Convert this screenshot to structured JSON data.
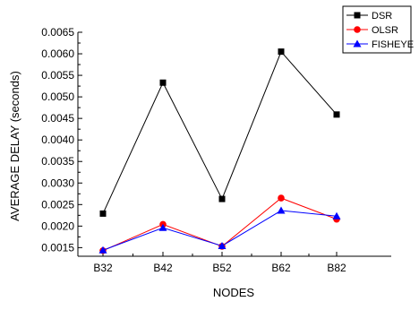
{
  "chart_data": {
    "type": "line",
    "title": "",
    "xlabel": "NODES",
    "ylabel": "AVERAGE DELAY (seconds)",
    "categories": [
      "B32",
      "B42",
      "B52",
      "B62",
      "B82"
    ],
    "ylim": [
      0.0013,
      0.0065
    ],
    "yticks": [
      "0.0015",
      "0.0020",
      "0.0025",
      "0.0030",
      "0.0035",
      "0.0040",
      "0.0045",
      "0.0050",
      "0.0055",
      "0.0060",
      "0.0065"
    ],
    "grid": false,
    "legend_position": "top-right",
    "series": [
      {
        "name": "DSR",
        "color": "#000000",
        "marker": "square",
        "values": [
          0.00229,
          0.00533,
          0.00263,
          0.00605,
          0.00459
        ]
      },
      {
        "name": "OLSR",
        "color": "#ff0000",
        "marker": "circle",
        "values": [
          0.00143,
          0.00204,
          0.00153,
          0.00265,
          0.00216
        ]
      },
      {
        "name": "FISHEYE",
        "color": "#0000ff",
        "marker": "triangle",
        "values": [
          0.00144,
          0.00196,
          0.00154,
          0.00236,
          0.00223
        ]
      }
    ]
  }
}
